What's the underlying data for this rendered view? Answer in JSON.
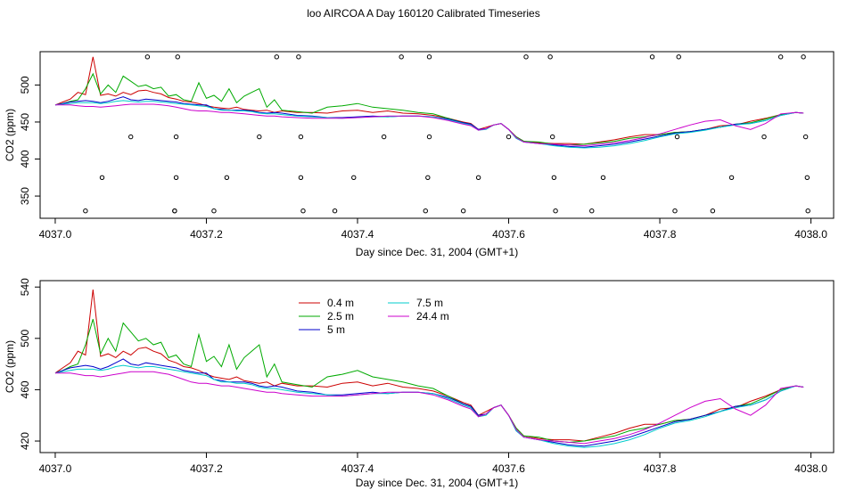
{
  "page_title": "loo AIRCOA A  Day 160120  Calibrated Timeseries",
  "chart_data": [
    {
      "type": "scatter",
      "title": "",
      "xlabel": "Day since Dec. 31, 2004 (GMT+1)",
      "ylabel": "CO2 (ppm)",
      "xlim": [
        4036.98,
        4038.03
      ],
      "ylim": [
        320,
        545
      ],
      "xticks": [
        "4037.0",
        "4037.2",
        "4037.4",
        "4037.6",
        "4037.8",
        "4038.0"
      ],
      "yticks": [
        "350",
        "400",
        "450",
        "500"
      ],
      "grid": false,
      "series": [
        {
          "name": "0.4 m",
          "color": "#cc0000",
          "x": [
            4037.0,
            4037.01,
            4037.02,
            4037.03,
            4037.04,
            4037.05,
            4037.06,
            4037.07,
            4037.08,
            4037.09,
            4037.1,
            4037.11,
            4037.12,
            4037.13,
            4037.14,
            4037.15,
            4037.16,
            4037.17,
            4037.18,
            4037.19,
            4037.2,
            4037.21,
            4037.22,
            4037.23,
            4037.24,
            4037.25,
            4037.26,
            4037.27,
            4037.28,
            4037.29,
            4037.3,
            4037.32,
            4037.34,
            4037.36,
            4037.38,
            4037.4,
            4037.42,
            4037.44,
            4037.46,
            4037.48,
            4037.5,
            4037.52,
            4037.54,
            4037.55,
            4037.56,
            4037.57,
            4037.58,
            4037.59,
            4037.6,
            4037.61,
            4037.62,
            4037.64,
            4037.66,
            4037.68,
            4037.7,
            4037.72,
            4037.74,
            4037.76,
            4037.78,
            4037.8,
            4037.82,
            4037.84,
            4037.86,
            4037.88,
            4037.9,
            4037.92,
            4037.94,
            4037.96,
            4037.98,
            4037.99
          ],
          "y": [
            473,
            477,
            481,
            490,
            487,
            538,
            486,
            488,
            485,
            490,
            487,
            492,
            493,
            490,
            488,
            483,
            481,
            478,
            477,
            475,
            472,
            470,
            469,
            468,
            470,
            467,
            466,
            465,
            466,
            463,
            465,
            463,
            463,
            462,
            465,
            466,
            463,
            465,
            462,
            461,
            459,
            455,
            450,
            448,
            440,
            443,
            446,
            448,
            440,
            430,
            424,
            422,
            421,
            421,
            420,
            423,
            426,
            430,
            433,
            433,
            436,
            437,
            440,
            445,
            446,
            451,
            455,
            460,
            463,
            462
          ]
        },
        {
          "name": "2.5 m",
          "color": "#00aa00",
          "x": [
            4037.0,
            4037.01,
            4037.02,
            4037.03,
            4037.04,
            4037.05,
            4037.06,
            4037.07,
            4037.08,
            4037.09,
            4037.1,
            4037.11,
            4037.12,
            4037.13,
            4037.14,
            4037.15,
            4037.16,
            4037.17,
            4037.18,
            4037.19,
            4037.2,
            4037.21,
            4037.22,
            4037.23,
            4037.24,
            4037.25,
            4037.26,
            4037.27,
            4037.28,
            4037.29,
            4037.3,
            4037.32,
            4037.34,
            4037.36,
            4037.38,
            4037.4,
            4037.42,
            4037.44,
            4037.46,
            4037.48,
            4037.5,
            4037.52,
            4037.54,
            4037.55,
            4037.56,
            4037.57,
            4037.58,
            4037.59,
            4037.6,
            4037.61,
            4037.62,
            4037.64,
            4037.66,
            4037.68,
            4037.7,
            4037.72,
            4037.74,
            4037.76,
            4037.78,
            4037.8,
            4037.82,
            4037.84,
            4037.86,
            4037.88,
            4037.9,
            4037.92,
            4037.94,
            4037.96,
            4037.98,
            4037.99
          ],
          "y": [
            473,
            475,
            478,
            480,
            495,
            515,
            488,
            500,
            490,
            512,
            505,
            498,
            500,
            495,
            497,
            485,
            487,
            480,
            478,
            503,
            482,
            486,
            478,
            495,
            476,
            485,
            490,
            495,
            470,
            480,
            466,
            464,
            462,
            470,
            472,
            475,
            470,
            468,
            466,
            463,
            461,
            455,
            449,
            447,
            439,
            441,
            446,
            448,
            440,
            430,
            424,
            423,
            420,
            419,
            420,
            422,
            424,
            428,
            430,
            433,
            436,
            437,
            440,
            443,
            447,
            449,
            454,
            460,
            463,
            462
          ]
        },
        {
          "name": "5 m",
          "color": "#0000cc",
          "x": [
            4037.0,
            4037.01,
            4037.02,
            4037.03,
            4037.04,
            4037.05,
            4037.06,
            4037.07,
            4037.08,
            4037.09,
            4037.1,
            4037.11,
            4037.12,
            4037.13,
            4037.14,
            4037.15,
            4037.16,
            4037.17,
            4037.18,
            4037.19,
            4037.2,
            4037.21,
            4037.22,
            4037.23,
            4037.24,
            4037.25,
            4037.26,
            4037.27,
            4037.28,
            4037.29,
            4037.3,
            4037.32,
            4037.34,
            4037.36,
            4037.38,
            4037.4,
            4037.42,
            4037.44,
            4037.46,
            4037.48,
            4037.5,
            4037.52,
            4037.54,
            4037.55,
            4037.56,
            4037.57,
            4037.58,
            4037.59,
            4037.6,
            4037.61,
            4037.62,
            4037.64,
            4037.66,
            4037.68,
            4037.7,
            4037.72,
            4037.74,
            4037.76,
            4037.78,
            4037.8,
            4037.82,
            4037.84,
            4037.86,
            4037.88,
            4037.9,
            4037.92,
            4037.94,
            4037.96,
            4037.98,
            4037.99
          ],
          "y": [
            473,
            475,
            477,
            478,
            479,
            478,
            476,
            478,
            481,
            484,
            480,
            479,
            481,
            480,
            479,
            478,
            477,
            475,
            474,
            473,
            473,
            468,
            467,
            466,
            466,
            466,
            465,
            463,
            462,
            463,
            462,
            459,
            458,
            456,
            456,
            457,
            458,
            457,
            458,
            458,
            457,
            454,
            449,
            447,
            440,
            441,
            446,
            448,
            440,
            428,
            423,
            421,
            419,
            417,
            416,
            418,
            420,
            423,
            427,
            431,
            435,
            437,
            440,
            443,
            447,
            448,
            452,
            459,
            463,
            462
          ]
        },
        {
          "name": "7.5 m",
          "color": "#00cccc",
          "x": [
            4037.0,
            4037.01,
            4037.02,
            4037.03,
            4037.04,
            4037.05,
            4037.06,
            4037.07,
            4037.08,
            4037.09,
            4037.1,
            4037.11,
            4037.12,
            4037.13,
            4037.14,
            4037.15,
            4037.16,
            4037.17,
            4037.18,
            4037.19,
            4037.2,
            4037.21,
            4037.22,
            4037.23,
            4037.24,
            4037.25,
            4037.26,
            4037.27,
            4037.28,
            4037.29,
            4037.3,
            4037.32,
            4037.34,
            4037.36,
            4037.38,
            4037.4,
            4037.42,
            4037.44,
            4037.46,
            4037.48,
            4037.5,
            4037.52,
            4037.54,
            4037.55,
            4037.56,
            4037.57,
            4037.58,
            4037.59,
            4037.6,
            4037.61,
            4037.62,
            4037.64,
            4037.66,
            4037.68,
            4037.7,
            4037.72,
            4037.74,
            4037.76,
            4037.78,
            4037.8,
            4037.82,
            4037.84,
            4037.86,
            4037.88,
            4037.9,
            4037.92,
            4037.94,
            4037.96,
            4037.98,
            4037.99
          ],
          "y": [
            473,
            474,
            475,
            476,
            476,
            476,
            475,
            476,
            478,
            479,
            478,
            477,
            478,
            478,
            477,
            476,
            475,
            474,
            473,
            472,
            471,
            468,
            466,
            466,
            465,
            465,
            464,
            462,
            461,
            461,
            460,
            458,
            457,
            456,
            455,
            456,
            457,
            457,
            458,
            458,
            457,
            453,
            448,
            446,
            439,
            440,
            446,
            448,
            440,
            428,
            423,
            421,
            418,
            416,
            415,
            416,
            418,
            421,
            425,
            430,
            434,
            436,
            439,
            443,
            446,
            448,
            452,
            459,
            463,
            462
          ]
        },
        {
          "name": "24.4 m",
          "color": "#cc00cc",
          "x": [
            4037.0,
            4037.01,
            4037.02,
            4037.03,
            4037.04,
            4037.05,
            4037.06,
            4037.07,
            4037.08,
            4037.09,
            4037.1,
            4037.11,
            4037.12,
            4037.13,
            4037.14,
            4037.15,
            4037.16,
            4037.17,
            4037.18,
            4037.19,
            4037.2,
            4037.21,
            4037.22,
            4037.23,
            4037.24,
            4037.25,
            4037.26,
            4037.27,
            4037.28,
            4037.29,
            4037.3,
            4037.32,
            4037.34,
            4037.36,
            4037.38,
            4037.4,
            4037.42,
            4037.44,
            4037.46,
            4037.48,
            4037.5,
            4037.52,
            4037.54,
            4037.55,
            4037.56,
            4037.57,
            4037.58,
            4037.59,
            4037.6,
            4037.61,
            4037.62,
            4037.64,
            4037.66,
            4037.68,
            4037.7,
            4037.72,
            4037.74,
            4037.76,
            4037.78,
            4037.8,
            4037.82,
            4037.84,
            4037.86,
            4037.88,
            4037.9,
            4037.92,
            4037.94,
            4037.96,
            4037.98,
            4037.99
          ],
          "y": [
            473,
            473,
            473,
            472,
            471,
            471,
            470,
            471,
            472,
            473,
            474,
            474,
            474,
            474,
            473,
            472,
            470,
            468,
            466,
            465,
            465,
            464,
            463,
            463,
            462,
            461,
            460,
            459,
            458,
            458,
            457,
            456,
            455,
            455,
            455,
            456,
            457,
            458,
            458,
            458,
            456,
            452,
            447,
            445,
            439,
            441,
            446,
            448,
            440,
            429,
            423,
            421,
            420,
            419,
            418,
            420,
            422,
            425,
            429,
            434,
            440,
            446,
            451,
            453,
            445,
            440,
            448,
            461,
            463,
            462
          ]
        }
      ],
      "markers": {
        "type": "open-circle",
        "x": [
          4037.04,
          4037.062,
          4037.1,
          4037.122,
          4037.158,
          4037.16,
          4037.16,
          4037.162,
          4037.158,
          4037.21,
          4037.227,
          4037.27,
          4037.293,
          4037.322,
          4037.325,
          4037.325,
          4037.328,
          4037.37,
          4037.395,
          4037.435,
          4037.458,
          4037.49,
          4037.493,
          4037.495,
          4037.495,
          4037.54,
          4037.56,
          4037.6,
          4037.623,
          4037.655,
          4037.658,
          4037.66,
          4037.662,
          4037.71,
          4037.725,
          4037.79,
          4037.82,
          4037.823,
          4037.825,
          4037.87,
          4037.895,
          4037.938,
          4037.96,
          4037.99,
          4037.993,
          4037.995,
          4037.996
        ],
        "y": [
          330,
          375,
          430,
          538,
          330,
          375,
          430,
          538,
          330,
          330,
          375,
          430,
          538,
          538,
          430,
          375,
          330,
          330,
          375,
          430,
          538,
          330,
          375,
          430,
          538,
          330,
          375,
          430,
          538,
          538,
          430,
          375,
          330,
          330,
          375,
          538,
          330,
          430,
          538,
          330,
          375,
          430,
          538,
          538,
          430,
          375,
          330
        ]
      }
    },
    {
      "type": "line",
      "title": "",
      "xlabel": "Day since Dec. 31, 2004 (GMT+1)",
      "ylabel": "CO2 (ppm)",
      "xlim": [
        4036.98,
        4038.03
      ],
      "ylim": [
        411,
        545
      ],
      "xticks": [
        "4037.0",
        "4037.2",
        "4037.4",
        "4037.6",
        "4037.8",
        "4038.0"
      ],
      "yticks": [
        "420",
        "460",
        "500",
        "540"
      ],
      "grid": false,
      "legend": {
        "placement": "top-left",
        "entries": [
          {
            "label": "0.4 m",
            "color": "#cc0000"
          },
          {
            "label": "2.5 m",
            "color": "#00aa00"
          },
          {
            "label": "5 m",
            "color": "#0000cc"
          },
          {
            "label": "7.5 m",
            "color": "#00cccc"
          },
          {
            "label": "24.4 m",
            "color": "#cc00cc"
          }
        ]
      },
      "series_ref": "same as chart 1 series"
    }
  ]
}
